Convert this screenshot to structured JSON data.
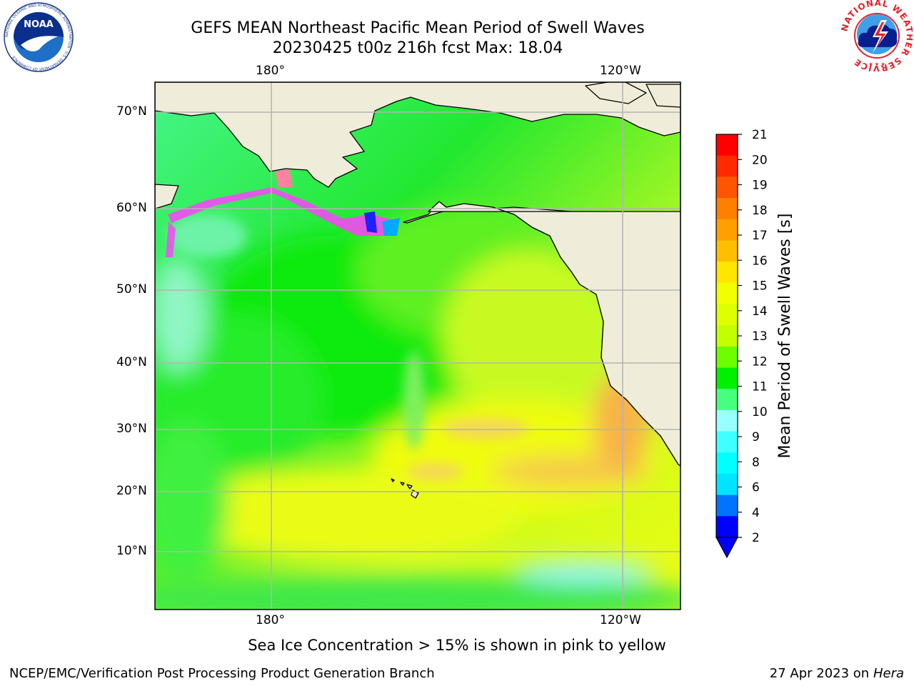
{
  "header": {
    "title_line1": "GEFS MEAN Northeast Pacific Mean Period of Swell Waves",
    "title_line2": "20230425 t00z 216h fcst   Max: 18.04"
  },
  "logos": {
    "left": "NOAA",
    "left_ring": "NATIONAL OCEANIC AND ATMOSPHERIC ADMINISTRATION · U.S. DEPARTMENT OF COMMERCE",
    "right_ring": "NATIONAL WEATHER SERVICE"
  },
  "map": {
    "lon_labels_top": [
      "180°",
      "120°W"
    ],
    "lon_labels_bottom": [
      "180°",
      "120°W"
    ],
    "lat_labels": [
      "70°N",
      "60°N",
      "50°N",
      "40°N",
      "30°N",
      "20°N",
      "10°N"
    ],
    "colors": {
      "land": "#efedd9",
      "ice_pink": "#ff40ff",
      "grid": "#b4b4b4"
    }
  },
  "colorbar": {
    "label": "Mean Period of Swell Waves [s]",
    "ticks": [
      "21",
      "20",
      "19",
      "18",
      "17",
      "16",
      "15",
      "14",
      "13",
      "12",
      "11",
      "10",
      "9",
      "8",
      "6",
      "4",
      "2"
    ],
    "colors": [
      "#ff0000",
      "#ff2a00",
      "#ff5500",
      "#ff7f00",
      "#ff9f00",
      "#ffbf00",
      "#ffe600",
      "#f2ff00",
      "#ddff00",
      "#c4ff00",
      "#6dff00",
      "#00f000",
      "#47ff7f",
      "#99ffff",
      "#40ffff",
      "#00ffff",
      "#00e5ff",
      "#0073ff",
      "#0000ff"
    ]
  },
  "note": "Sea Ice Concentration > 15% is shown in pink to yellow",
  "footer": {
    "left": "NCEP/EMC/Verification Post Processing Product Generation Branch",
    "date": "27 Apr 2023 on ",
    "machine": "Hera"
  }
}
